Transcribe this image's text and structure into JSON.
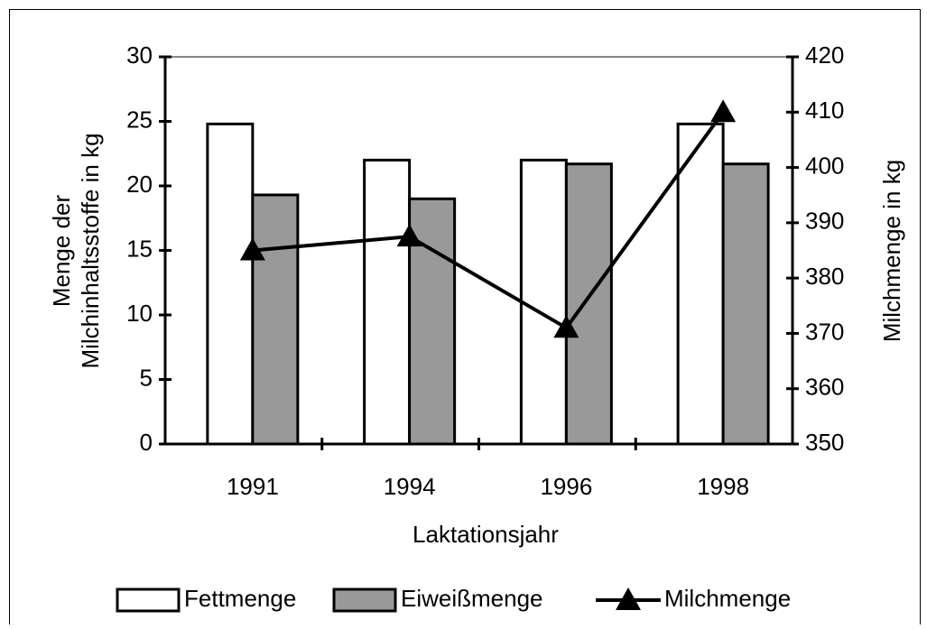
{
  "chart_data": {
    "type": "bar_line",
    "categories": [
      "1991",
      "1994",
      "1996",
      "1998"
    ],
    "series": [
      {
        "name": "Fettmenge",
        "type": "bar",
        "color": "#ffffff",
        "values": [
          24.8,
          22,
          22,
          24.8
        ]
      },
      {
        "name": "Eiweißmenge",
        "type": "bar",
        "color": "#999999",
        "values": [
          19.3,
          19,
          21.7,
          21.7
        ]
      },
      {
        "name": "Milchmenge",
        "type": "line",
        "color": "#000000",
        "axis": "y2",
        "values": [
          385,
          387.5,
          371,
          410
        ]
      }
    ],
    "ylim": [
      0,
      30
    ],
    "yticks": [
      0,
      5,
      10,
      15,
      20,
      25,
      30
    ],
    "y2lim": [
      350,
      420
    ],
    "y2ticks": [
      350,
      360,
      370,
      380,
      390,
      400,
      410,
      420
    ],
    "y_label": [
      "Menge der",
      "Milchinhaltsstoffe in kg"
    ],
    "y2_label": "Milchmenge in kg",
    "x_label": "Laktationsjahr",
    "legend": "bottom"
  }
}
